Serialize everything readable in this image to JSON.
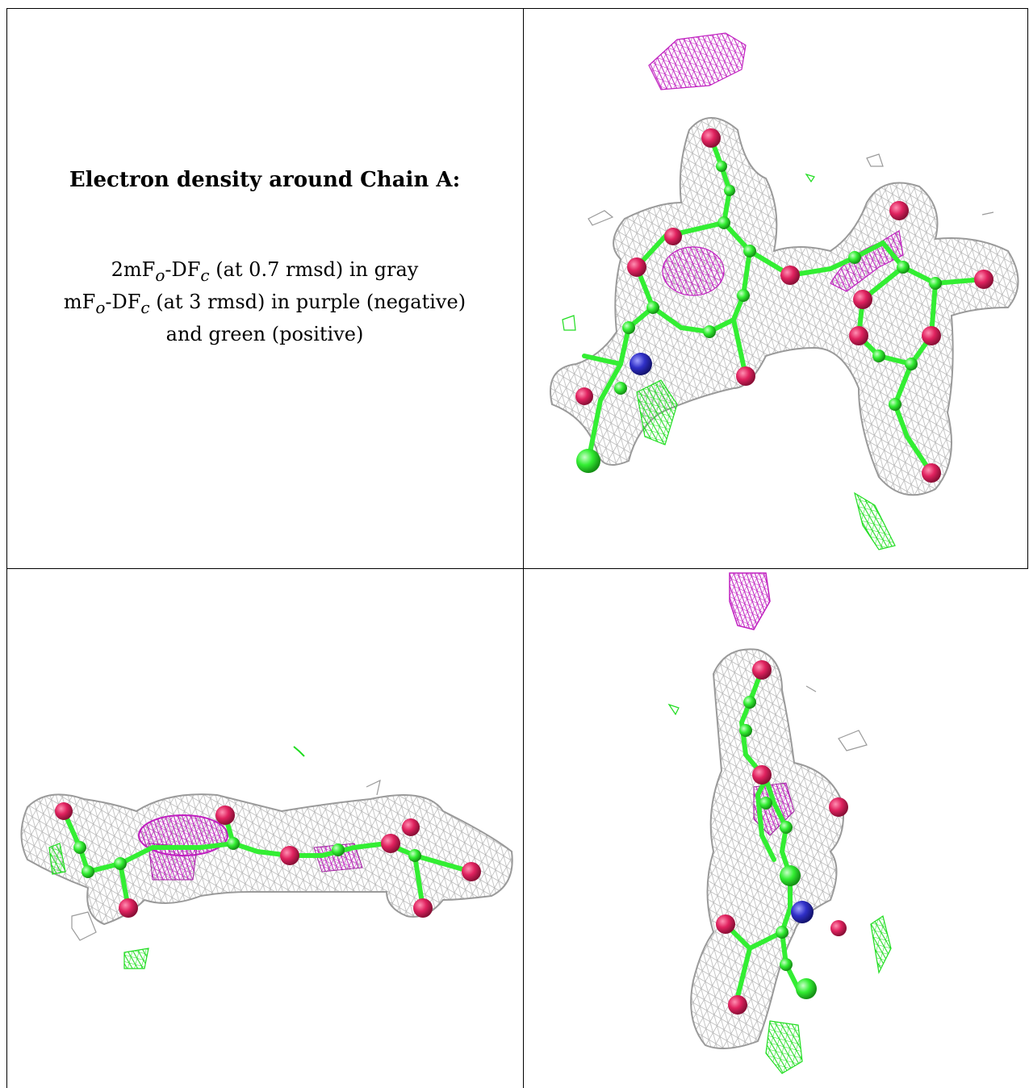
{
  "caption": {
    "title": "Electron density around Chain A:",
    "line1_a": "2mF",
    "line1_sub1": "o",
    "line1_b": "-DF",
    "line1_sub2": "c",
    "line1_c": " (at 0.7 rmsd) in gray",
    "line2_a": "mF",
    "line2_sub1": "o",
    "line2_b": "-DF",
    "line2_sub2": "c",
    "line2_c": " (at 3 rmsd) in purple (negative)",
    "line3": "and green (positive)"
  },
  "colors": {
    "mesh_gray": "#9a9a9a",
    "carbon_green": "#33ee33",
    "oxygen_red": "#e0225f",
    "nitrogen_blue": "#3030c8",
    "negative_purple": "#c020c0",
    "positive_green": "#20dd20",
    "grid_rule": "#000000"
  }
}
